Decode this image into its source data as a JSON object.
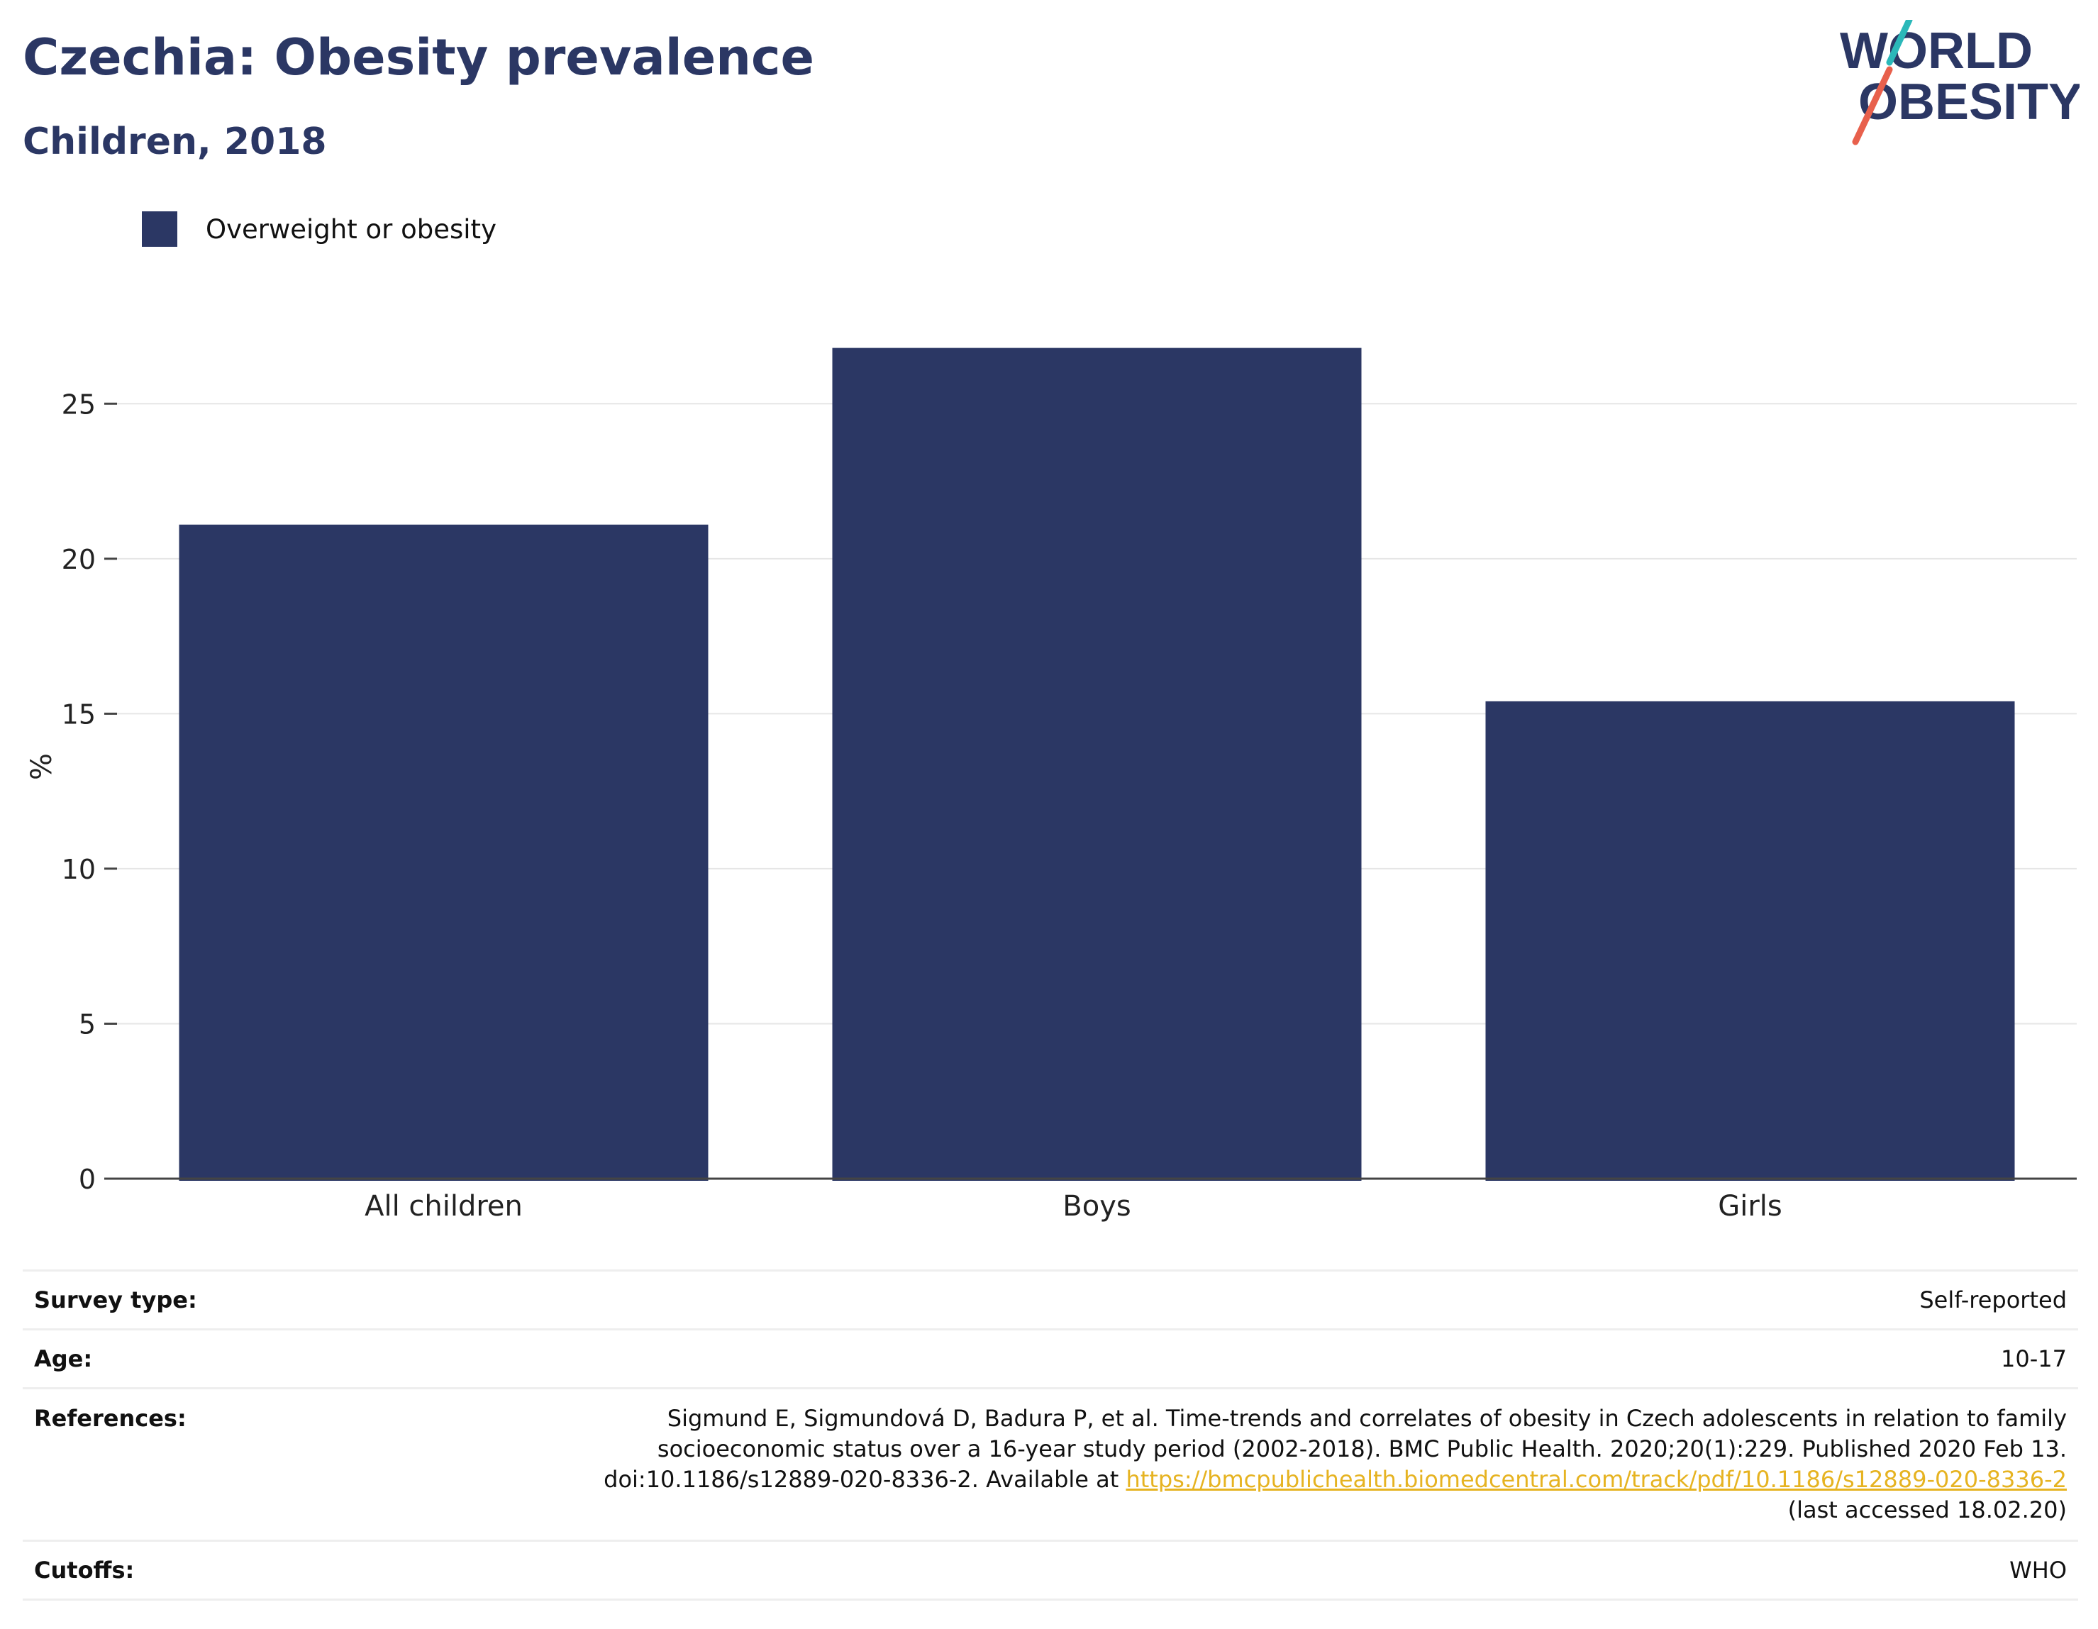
{
  "header": {
    "title": "Czechia: Obesity prevalence",
    "subtitle": "Children, 2018"
  },
  "logo": {
    "line1": "WORLD",
    "line2": "OBESITY",
    "accent_teal": "#2bb8b9",
    "accent_red": "#e8604c"
  },
  "legend": {
    "label": "Overweight or obesity",
    "color": "#2b3764"
  },
  "chart_data": {
    "type": "bar",
    "title": "Czechia: Obesity prevalence",
    "subtitle": "Children, 2018",
    "categories": [
      "All children",
      "Boys",
      "Girls"
    ],
    "series": [
      {
        "name": "Overweight or obesity",
        "values": [
          21.1,
          26.8,
          15.4
        ],
        "color": "#2b3764"
      }
    ],
    "xlabel": "",
    "ylabel": "%",
    "ylim": [
      0,
      27.5
    ],
    "yticks": [
      0,
      5,
      10,
      15,
      20,
      25
    ],
    "grid": true,
    "legend_position": "top-left"
  },
  "info": {
    "survey_type_label": "Survey type:",
    "survey_type_value": "Self-reported",
    "age_label": "Age:",
    "age_value": "10-17",
    "references_label": "References:",
    "references_line1": "Sigmund E, Sigmundová D, Badura P, et al. Time-trends and correlates of obesity in Czech adolescents in relation to family",
    "references_line2": "socioeconomic status over a 16-year study period (2002-2018). BMC Public Health. 2020;20(1):229. Published 2020 Feb 13.",
    "references_line3_prefix": "doi:10.1186/s12889-020-8336-2. Available at ",
    "references_link": "https://bmcpublichealth.biomedcentral.com/track/pdf/10.1186/s12889-020-8336-2",
    "references_line4": "(last accessed 18.02.20)",
    "cutoffs_label": "Cutoffs:",
    "cutoffs_value": "WHO"
  }
}
